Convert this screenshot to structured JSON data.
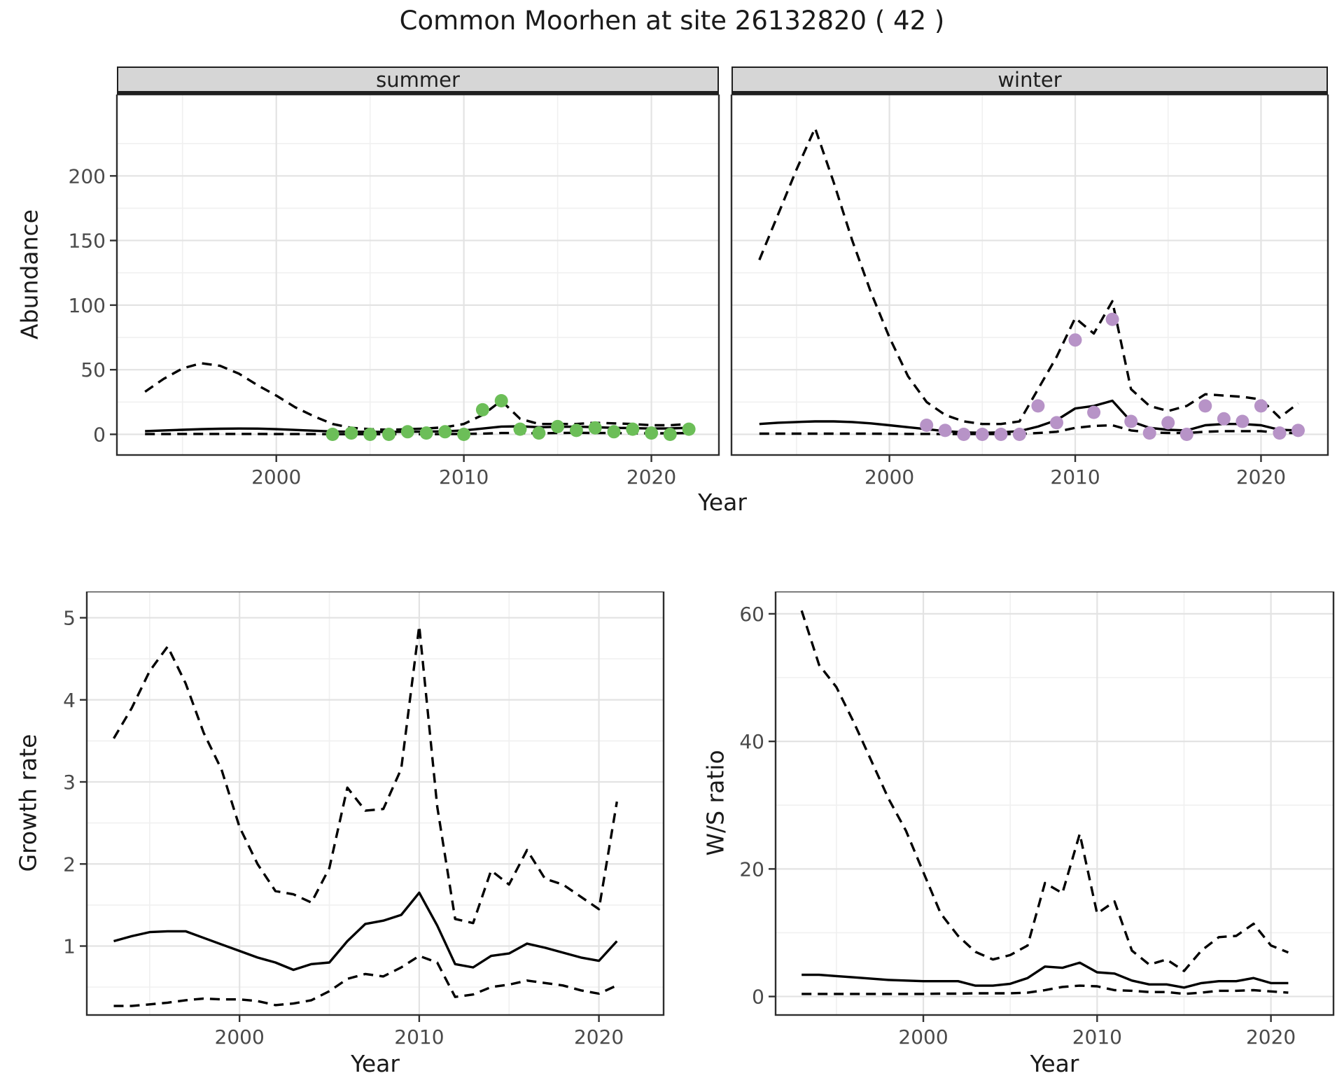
{
  "title": "Common Moorhen at site 26132820 ( 42 )",
  "colors": {
    "summer_points": "#6cbe58",
    "winter_points": "#b793c7",
    "line": "#000000",
    "strip_bg": "#d6d6d6",
    "grid_major": "#e3e3e3",
    "grid_minor": "#f0f0f0",
    "panel_border": "#2e2e2e",
    "tick_mark": "#333333",
    "tick_label": "#4a4a4a"
  },
  "top_row": {
    "ylabel": "Abundance",
    "xlabel": "Year"
  },
  "chart_data": [
    {
      "id": "abundance-summer",
      "type": "line",
      "facet_label": "summer",
      "ylabel": "Abundance",
      "xlabel": "Year",
      "xlim": [
        1991.5,
        2023.6
      ],
      "ylim": [
        -16,
        263
      ],
      "xticks": [
        2000,
        2010,
        2020
      ],
      "xminor": [
        1995,
        2005,
        2015
      ],
      "yticks": [
        0,
        50,
        100,
        150,
        200
      ],
      "yminor": [
        25,
        75,
        125,
        175,
        225
      ],
      "show_yticklabels": true,
      "legend": "off",
      "series": [
        {
          "name": "model-fit",
          "style": "solid",
          "years": [
            1993,
            1994,
            1995,
            1996,
            1997,
            1998,
            1999,
            2000,
            2001,
            2002,
            2003,
            2004,
            2005,
            2006,
            2007,
            2008,
            2009,
            2010,
            2011,
            2012,
            2013,
            2014,
            2015,
            2016,
            2017,
            2018,
            2019,
            2020,
            2021,
            2022
          ],
          "values": [
            2.5,
            3,
            3.5,
            4,
            4.3,
            4.5,
            4.4,
            4,
            3.4,
            2.8,
            2.2,
            2,
            1.9,
            1.9,
            2,
            2.1,
            2.3,
            3,
            4.5,
            6,
            6.2,
            5.5,
            5.8,
            6,
            5.5,
            5,
            4.8,
            4.5,
            4.6,
            5
          ]
        },
        {
          "name": "upper-ci",
          "style": "dashed",
          "years": [
            1993,
            1994,
            1995,
            1996,
            1997,
            1998,
            1999,
            2000,
            2001,
            2002,
            2003,
            2004,
            2005,
            2006,
            2007,
            2008,
            2009,
            2010,
            2011,
            2012,
            2013,
            2014,
            2015,
            2016,
            2017,
            2018,
            2019,
            2020,
            2021,
            2022
          ],
          "values": [
            33,
            43,
            51,
            55,
            53,
            47,
            38,
            30,
            21,
            14,
            8,
            5,
            4,
            3.5,
            4,
            4.5,
            5.5,
            8,
            15,
            26,
            12,
            8,
            8,
            8,
            9,
            8.5,
            8,
            7,
            7,
            8
          ]
        },
        {
          "name": "lower-ci",
          "style": "dashed",
          "years": [
            1993,
            1994,
            1995,
            1996,
            1997,
            1998,
            1999,
            2000,
            2001,
            2002,
            2003,
            2004,
            2005,
            2006,
            2007,
            2008,
            2009,
            2010,
            2011,
            2012,
            2013,
            2014,
            2015,
            2016,
            2017,
            2018,
            2019,
            2020,
            2021,
            2022
          ],
          "values": [
            0.2,
            0.2,
            0.3,
            0.3,
            0.3,
            0.3,
            0.3,
            0.2,
            0.2,
            0.2,
            0.1,
            0.1,
            0.1,
            0.1,
            0.1,
            0.1,
            0.2,
            0.3,
            0.5,
            1,
            1,
            0.8,
            1,
            1.2,
            1,
            1,
            0.8,
            0.8,
            0.8,
            1
          ]
        }
      ],
      "points": {
        "name": "observed-counts",
        "color_key": "summer_points",
        "years": [
          2003,
          2004,
          2005,
          2006,
          2007,
          2008,
          2009,
          2010,
          2011,
          2012,
          2013,
          2014,
          2015,
          2016,
          2017,
          2018,
          2019,
          2020,
          2021,
          2022
        ],
        "values": [
          0,
          1,
          0,
          0,
          2,
          1,
          2,
          0,
          19,
          26,
          4,
          1,
          6,
          3,
          5,
          2,
          4,
          1,
          0,
          4
        ]
      }
    },
    {
      "id": "abundance-winter",
      "type": "line",
      "facet_label": "winter",
      "ylabel": "Abundance",
      "xlabel": "Year",
      "xlim": [
        1991.5,
        2023.6
      ],
      "ylim": [
        -16,
        263
      ],
      "xticks": [
        2000,
        2010,
        2020
      ],
      "xminor": [
        1995,
        2005,
        2015
      ],
      "yticks": [
        0,
        50,
        100,
        150,
        200
      ],
      "yminor": [
        25,
        75,
        125,
        175,
        225
      ],
      "show_yticklabels": false,
      "legend": "off",
      "series": [
        {
          "name": "model-fit",
          "style": "solid",
          "years": [
            1993,
            1994,
            1995,
            1996,
            1997,
            1998,
            1999,
            2000,
            2001,
            2002,
            2003,
            2004,
            2005,
            2006,
            2007,
            2008,
            2009,
            2010,
            2011,
            2012,
            2013,
            2014,
            2015,
            2016,
            2017,
            2018,
            2019,
            2020,
            2021,
            2022
          ],
          "values": [
            8,
            9,
            9.5,
            10,
            10,
            9.5,
            8.5,
            7,
            5.5,
            4,
            2.5,
            1.5,
            1.2,
            1.5,
            2.5,
            6,
            11,
            20,
            22,
            26,
            10,
            5,
            3.5,
            3,
            7,
            8,
            8,
            7,
            3.5,
            3
          ]
        },
        {
          "name": "upper-ci",
          "style": "dashed",
          "years": [
            1993,
            1994,
            1995,
            1996,
            1997,
            1998,
            1999,
            2000,
            2001,
            2002,
            2003,
            2004,
            2005,
            2006,
            2007,
            2008,
            2009,
            2010,
            2011,
            2012,
            2013,
            2014,
            2015,
            2016,
            2017,
            2018,
            2019,
            2020,
            2021,
            2022
          ],
          "values": [
            135,
            170,
            205,
            237,
            195,
            150,
            110,
            75,
            45,
            25,
            15,
            10,
            8,
            8,
            10,
            35,
            60,
            90,
            78,
            103,
            35,
            22,
            18,
            22,
            31,
            30,
            29,
            27,
            13,
            24
          ]
        },
        {
          "name": "lower-ci",
          "style": "dashed",
          "years": [
            1993,
            1994,
            1995,
            1996,
            1997,
            1998,
            1999,
            2000,
            2001,
            2002,
            2003,
            2004,
            2005,
            2006,
            2007,
            2008,
            2009,
            2010,
            2011,
            2012,
            2013,
            2014,
            2015,
            2016,
            2017,
            2018,
            2019,
            2020,
            2021,
            2022
          ],
          "values": [
            0.5,
            0.5,
            0.5,
            0.5,
            0.5,
            0.5,
            0.5,
            0.4,
            0.3,
            0.3,
            0.2,
            0.2,
            0.2,
            0.2,
            0.3,
            1,
            2,
            5,
            6.5,
            7,
            3,
            1.5,
            1,
            1,
            2,
            2.5,
            2.5,
            2.5,
            1,
            1
          ]
        }
      ],
      "points": {
        "name": "observed-counts",
        "color_key": "winter_points",
        "years": [
          2002,
          2003,
          2004,
          2005,
          2006,
          2007,
          2008,
          2009,
          2010,
          2011,
          2012,
          2013,
          2014,
          2015,
          2016,
          2017,
          2018,
          2019,
          2020,
          2021,
          2022
        ],
        "values": [
          7,
          3,
          0,
          0,
          0,
          0,
          22,
          9,
          73,
          17,
          89,
          10,
          1,
          9,
          0,
          22,
          12,
          10,
          22,
          1,
          3
        ]
      }
    },
    {
      "id": "growth-rate",
      "type": "line",
      "facet_label": "",
      "ylabel": "Growth rate",
      "xlabel": "Year",
      "xlim": [
        1991.5,
        2023.6
      ],
      "ylim": [
        0.16,
        5.32
      ],
      "xticks": [
        2000,
        2010,
        2020
      ],
      "xminor": [
        1995,
        2005,
        2015
      ],
      "yticks": [
        1,
        2,
        3,
        4,
        5
      ],
      "yminor": [
        0.5,
        1.5,
        2.5,
        3.5,
        4.5
      ],
      "show_yticklabels": true,
      "legend": "off",
      "series": [
        {
          "name": "model-fit",
          "style": "solid",
          "years": [
            1993,
            1994,
            1995,
            1996,
            1997,
            1998,
            1999,
            2000,
            2001,
            2002,
            2003,
            2004,
            2005,
            2006,
            2007,
            2008,
            2009,
            2010,
            2011,
            2012,
            2013,
            2014,
            2015,
            2016,
            2017,
            2018,
            2019,
            2020,
            2021
          ],
          "values": [
            1.06,
            1.12,
            1.17,
            1.18,
            1.18,
            1.1,
            1.02,
            0.94,
            0.86,
            0.8,
            0.71,
            0.78,
            0.8,
            1.06,
            1.27,
            1.31,
            1.38,
            1.65,
            1.25,
            0.78,
            0.74,
            0.88,
            0.91,
            1.03,
            0.98,
            0.92,
            0.86,
            0.82,
            1.06
          ]
        },
        {
          "name": "upper-ci",
          "style": "dashed",
          "years": [
            1993,
            1994,
            1995,
            1996,
            1997,
            1998,
            1999,
            2000,
            2001,
            2002,
            2003,
            2004,
            2005,
            2006,
            2007,
            2008,
            2009,
            2010,
            2011,
            2012,
            2013,
            2014,
            2015,
            2016,
            2017,
            2018,
            2019,
            2020,
            2021
          ],
          "values": [
            3.53,
            3.9,
            4.35,
            4.65,
            4.2,
            3.6,
            3.15,
            2.45,
            2.0,
            1.67,
            1.63,
            1.53,
            1.95,
            2.93,
            2.65,
            2.67,
            3.16,
            4.9,
            2.7,
            1.33,
            1.28,
            1.92,
            1.75,
            2.17,
            1.82,
            1.75,
            1.6,
            1.45,
            2.76
          ]
        },
        {
          "name": "lower-ci",
          "style": "dashed",
          "years": [
            1993,
            1994,
            1995,
            1996,
            1997,
            1998,
            1999,
            2000,
            2001,
            2002,
            2003,
            2004,
            2005,
            2006,
            2007,
            2008,
            2009,
            2010,
            2011,
            2012,
            2013,
            2014,
            2015,
            2016,
            2017,
            2018,
            2019,
            2020,
            2021
          ],
          "values": [
            0.27,
            0.27,
            0.29,
            0.31,
            0.34,
            0.36,
            0.35,
            0.35,
            0.33,
            0.28,
            0.3,
            0.34,
            0.45,
            0.6,
            0.66,
            0.63,
            0.74,
            0.88,
            0.8,
            0.38,
            0.41,
            0.5,
            0.53,
            0.58,
            0.55,
            0.52,
            0.46,
            0.42,
            0.52
          ]
        }
      ],
      "points": null
    },
    {
      "id": "ws-ratio",
      "type": "line",
      "facet_label": "",
      "ylabel": "W/S ratio",
      "xlabel": "Year",
      "xlim": [
        1991.5,
        2023.6
      ],
      "ylim": [
        -2.9,
        63.5
      ],
      "xticks": [
        2000,
        2010,
        2020
      ],
      "xminor": [
        1995,
        2005,
        2015
      ],
      "yticks": [
        0,
        20,
        40,
        60
      ],
      "yminor": [
        10,
        30,
        50
      ],
      "show_yticklabels": true,
      "legend": "off",
      "series": [
        {
          "name": "model-fit",
          "style": "solid",
          "years": [
            1993,
            1994,
            1995,
            1996,
            1997,
            1998,
            1999,
            2000,
            2001,
            2002,
            2003,
            2004,
            2005,
            2006,
            2007,
            2008,
            2009,
            2010,
            2011,
            2012,
            2013,
            2014,
            2015,
            2016,
            2017,
            2018,
            2019,
            2020,
            2021
          ],
          "values": [
            3.4,
            3.4,
            3.2,
            3.0,
            2.8,
            2.6,
            2.5,
            2.4,
            2.4,
            2.4,
            1.7,
            1.7,
            2.0,
            2.9,
            4.7,
            4.5,
            5.3,
            3.8,
            3.6,
            2.5,
            1.9,
            1.9,
            1.4,
            2.1,
            2.4,
            2.4,
            2.9,
            2.1,
            2.1
          ]
        },
        {
          "name": "upper-ci",
          "style": "dashed",
          "years": [
            1993,
            1994,
            1995,
            1996,
            1997,
            1998,
            1999,
            2000,
            2001,
            2002,
            2003,
            2004,
            2005,
            2006,
            2007,
            2008,
            2009,
            2010,
            2011,
            2012,
            2013,
            2014,
            2015,
            2016,
            2017,
            2018,
            2019,
            2020,
            2021
          ],
          "values": [
            60.5,
            52,
            48.5,
            43,
            37,
            31,
            26,
            19.5,
            13,
            9.5,
            7,
            5.8,
            6.5,
            8,
            17.8,
            16.2,
            25.5,
            13,
            14.9,
            7.2,
            5.0,
            5.8,
            4.0,
            7.2,
            9.3,
            9.5,
            11.4,
            8.0,
            6.9
          ]
        },
        {
          "name": "lower-ci",
          "style": "dashed",
          "years": [
            1993,
            1994,
            1995,
            1996,
            1997,
            1998,
            1999,
            2000,
            2001,
            2002,
            2003,
            2004,
            2005,
            2006,
            2007,
            2008,
            2009,
            2010,
            2011,
            2012,
            2013,
            2014,
            2015,
            2016,
            2017,
            2018,
            2019,
            2020,
            2021
          ],
          "values": [
            0.4,
            0.4,
            0.4,
            0.4,
            0.4,
            0.4,
            0.4,
            0.4,
            0.45,
            0.45,
            0.5,
            0.5,
            0.5,
            0.6,
            1.0,
            1.5,
            1.7,
            1.6,
            1.0,
            0.9,
            0.7,
            0.7,
            0.4,
            0.6,
            0.9,
            0.9,
            1.0,
            0.8,
            0.6
          ]
        }
      ],
      "points": null
    }
  ]
}
